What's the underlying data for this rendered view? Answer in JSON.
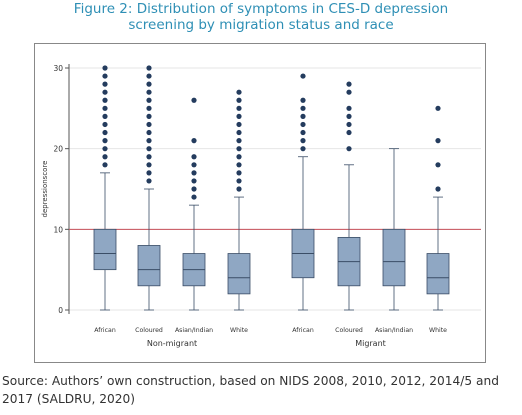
{
  "figure": {
    "title_line1": "Figure 2: Distribution of symptoms in CES-D depression",
    "title_line2": "screening by migration status and race",
    "source": "Source: Authors’ own construction, based on NIDS 2008, 2010, 2012, 2014/5 and 2017 (SALDRU, 2020)"
  },
  "chart_data": {
    "type": "box",
    "ylabel": "depressionscore",
    "ylim": [
      0,
      30
    ],
    "yticks": [
      0,
      10,
      20,
      30
    ],
    "reference_line": 10,
    "grid": true,
    "colors": {
      "box_fill": "#8fa7c3",
      "box_stroke": "#3a4d66",
      "outlier": "#243c5e",
      "reference": "#c8515a",
      "grid": "#e6e6e6"
    },
    "groups": [
      {
        "name": "Non-migrant",
        "categories": [
          "African",
          "Coloured",
          "Asian/Indian",
          "White"
        ]
      },
      {
        "name": "Migrant",
        "categories": [
          "African",
          "Coloured",
          "Asian/Indian",
          "White"
        ]
      }
    ],
    "boxes": [
      {
        "group": "Non-migrant",
        "category": "African",
        "whisker_low": 0,
        "q1": 5,
        "median": 7,
        "q3": 10,
        "whisker_high": 17,
        "outliers": [
          18,
          19,
          20,
          21,
          22,
          23,
          24,
          25,
          26,
          27,
          28,
          29,
          30
        ]
      },
      {
        "group": "Non-migrant",
        "category": "Coloured",
        "whisker_low": 0,
        "q1": 3,
        "median": 5,
        "q3": 8,
        "whisker_high": 15,
        "outliers": [
          16,
          17,
          18,
          19,
          20,
          21,
          22,
          23,
          24,
          25,
          26,
          27,
          28,
          29,
          30
        ]
      },
      {
        "group": "Non-migrant",
        "category": "Asian/Indian",
        "whisker_low": 0,
        "q1": 3,
        "median": 5,
        "q3": 7,
        "whisker_high": 13,
        "outliers": [
          14,
          15,
          16,
          17,
          18,
          19,
          21,
          26
        ]
      },
      {
        "group": "Non-migrant",
        "category": "White",
        "whisker_low": 0,
        "q1": 2,
        "median": 4,
        "q3": 7,
        "whisker_high": 14,
        "outliers": [
          15,
          16,
          17,
          18,
          19,
          20,
          21,
          22,
          23,
          24,
          25,
          26,
          27
        ]
      },
      {
        "group": "Migrant",
        "category": "African",
        "whisker_low": 0,
        "q1": 4,
        "median": 7,
        "q3": 10,
        "whisker_high": 19,
        "outliers": [
          20,
          21,
          22,
          23,
          24,
          25,
          26,
          29
        ]
      },
      {
        "group": "Migrant",
        "category": "Coloured",
        "whisker_low": 0,
        "q1": 3,
        "median": 6,
        "q3": 9,
        "whisker_high": 18,
        "outliers": [
          20,
          22,
          23,
          24,
          25,
          27,
          28
        ]
      },
      {
        "group": "Migrant",
        "category": "Asian/Indian",
        "whisker_low": 0,
        "q1": 3,
        "median": 6,
        "q3": 10,
        "whisker_high": 20,
        "outliers": []
      },
      {
        "group": "Migrant",
        "category": "White",
        "whisker_low": 0,
        "q1": 2,
        "median": 4,
        "q3": 7,
        "whisker_high": 14,
        "outliers": [
          15,
          18,
          21,
          25
        ]
      }
    ]
  }
}
